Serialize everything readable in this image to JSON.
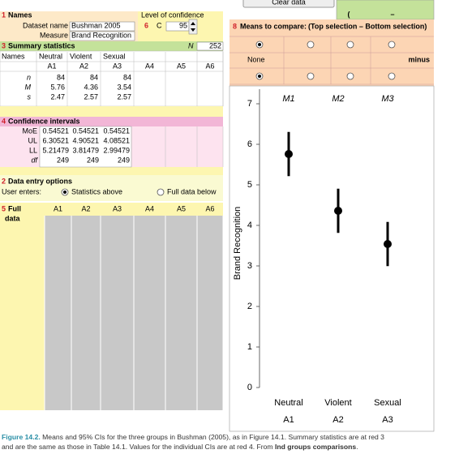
{
  "top": {
    "button": "Clear data",
    "paren": "(",
    "dash": "–"
  },
  "names": {
    "num": "1",
    "header": "Names",
    "dataset_label": "Dataset name",
    "dataset": "Bushman 2005",
    "measure_label": "Measure",
    "measure": "Brand Recognition"
  },
  "confidence": {
    "label": "Level of confidence",
    "num": "6",
    "c": "C",
    "value": 95
  },
  "summary": {
    "num": "3",
    "header": "Summary statistics",
    "n_label": "N",
    "n": 252,
    "names_label": "Names",
    "names": [
      "Neutral",
      "Violent",
      "Sexual"
    ],
    "columns": [
      "A1",
      "A2",
      "A3",
      "A4",
      "A5",
      "A6"
    ],
    "rows": [
      {
        "label": "n",
        "values": [
          84,
          84,
          84
        ]
      },
      {
        "label": "M",
        "values": [
          5.76,
          4.36,
          3.54
        ]
      },
      {
        "label": "s",
        "values": [
          2.47,
          2.57,
          2.57
        ]
      }
    ]
  },
  "ci": {
    "num": "4",
    "header": "Confidence intervals",
    "rows": [
      {
        "label": "MoE",
        "values": [
          0.54521,
          0.54521,
          0.54521
        ]
      },
      {
        "label": "UL",
        "values": [
          6.30521,
          4.90521,
          4.08521
        ]
      },
      {
        "label": "LL",
        "values": [
          5.21479,
          3.81479,
          2.99479
        ]
      },
      {
        "label": "df",
        "values": [
          249,
          249,
          249
        ]
      }
    ]
  },
  "entry": {
    "num": "2",
    "header": "Data entry options",
    "user_label": "User enters:",
    "options": [
      "Statistics above",
      "Full data below"
    ],
    "selected": 0
  },
  "full_data": {
    "num": "5",
    "header": [
      "Full",
      "data"
    ],
    "columns": [
      "A1",
      "A2",
      "A3",
      "A4",
      "A5",
      "A6"
    ]
  },
  "compare": {
    "num": "8",
    "header": "Means to compare:",
    "subheader": "(Top selection – Bottom selection)",
    "none": "None",
    "minus": "minus",
    "top_selected": 0,
    "bottom_selected": 0
  },
  "chart": {
    "y_label": "Brand Recognition",
    "column_labels": [
      "M1",
      "M2",
      "M3"
    ],
    "categories": [
      "Neutral",
      "Violent",
      "Sexual"
    ],
    "groups": [
      "A1",
      "A2",
      "A3"
    ],
    "ylim": [
      0,
      7.36
    ],
    "yticks": [
      0,
      1,
      2,
      3,
      4,
      5,
      6,
      7
    ]
  },
  "caption": {
    "label": "Figure 14.2.",
    "line1": " Means and 95% CIs for the three groups in Bushman (2005), as in Figure 14.1. Summary statistics are at red 3",
    "line2": "and are the same as those in Table 14.1. Values for the individual CIs are at red 4. From ",
    "source": "Ind groups comparisons",
    "end": "."
  }
}
